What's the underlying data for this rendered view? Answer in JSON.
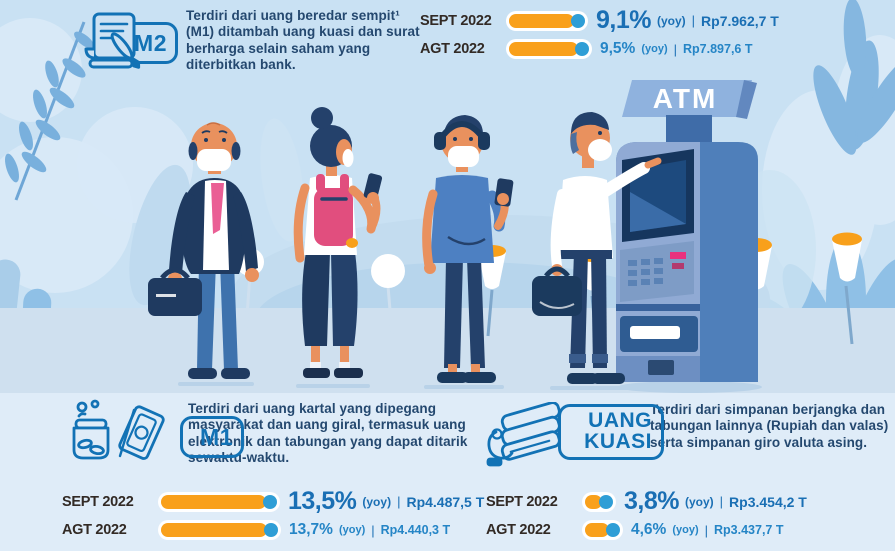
{
  "colors": {
    "background": "#c9e1f3",
    "bottom_panel": "#dfecf8",
    "bar_orange": "#f9a01b",
    "dot_blue": "#2f9ed6",
    "value_blue": "#1a6fb4",
    "badge_blue": "#1272b5",
    "label_dark": "#322a25",
    "description_navy": "#24486f"
  },
  "icons": {
    "m2": "document-pen-icon",
    "m1": "savings-jar-money-icon",
    "uang_kuasi": "hand-cards-icon"
  },
  "atm": {
    "sign": "ATM"
  },
  "m2": {
    "badge": "M2",
    "description": "Terdiri dari uang beredar sempit¹ (M1) ditambah uang kuasi dan surat berharga selain saham yang diterbitkan bank.",
    "stats": [
      {
        "period": "SEPT 2022",
        "growth": 9.1,
        "percent": "9,1%",
        "yoy": "(yoy)",
        "sep": "|",
        "amount": "Rp7.962,7 T"
      },
      {
        "period": "AGT 2022",
        "growth": 9.5,
        "percent": "9,5%",
        "yoy": "(yoy)",
        "sep": "|",
        "amount": "Rp7.897,6 T"
      }
    ]
  },
  "m1": {
    "badge": "M1",
    "description": "Terdiri dari uang kartal yang dipegang masyarakat dan uang giral, termasuk uang elektronik dan tabungan yang dapat ditarik sewaktu-waktu.",
    "stats": [
      {
        "period": "SEPT 2022",
        "growth": 13.5,
        "percent": "13,5%",
        "yoy": "(yoy)",
        "sep": "|",
        "amount": "Rp4.487,5 T"
      },
      {
        "period": "AGT 2022",
        "growth": 13.7,
        "percent": "13,7%",
        "yoy": "(yoy)",
        "sep": "|",
        "amount": "Rp4.440,3 T"
      }
    ]
  },
  "uang_kuasi": {
    "badge_line1": "UANG",
    "badge_line2": "KUASI",
    "description": "Terdiri dari simpanan berjangka dan tabungan lainnya (Rupiah dan valas) serta simpanan giro valuta asing.",
    "stats": [
      {
        "period": "SEPT 2022",
        "growth": 3.8,
        "percent": "3,8%",
        "yoy": "(yoy)",
        "sep": "|",
        "amount": "Rp3.454,2 T"
      },
      {
        "period": "AGT 2022",
        "growth": 4.6,
        "percent": "4,6%",
        "yoy": "(yoy)",
        "sep": "|",
        "amount": "Rp3.437,7 T"
      }
    ]
  },
  "chart_data": {
    "type": "bar",
    "categories": [
      "SEPT 2022",
      "AGT 2022"
    ],
    "series": [
      {
        "name": "M2",
        "growth_yoy_pct": [
          9.1,
          9.5
        ],
        "amount_trillion_rp": [
          7962.7,
          7897.6
        ]
      },
      {
        "name": "M1",
        "growth_yoy_pct": [
          13.5,
          13.7
        ],
        "amount_trillion_rp": [
          4487.5,
          4440.3
        ]
      },
      {
        "name": "UANG KUASI",
        "growth_yoy_pct": [
          3.8,
          4.6
        ],
        "amount_trillion_rp": [
          3454.2,
          3437.7
        ]
      }
    ],
    "value_unit": "% (yoy)",
    "amount_unit": "Rp T",
    "legend_position": "none",
    "grid": false
  }
}
